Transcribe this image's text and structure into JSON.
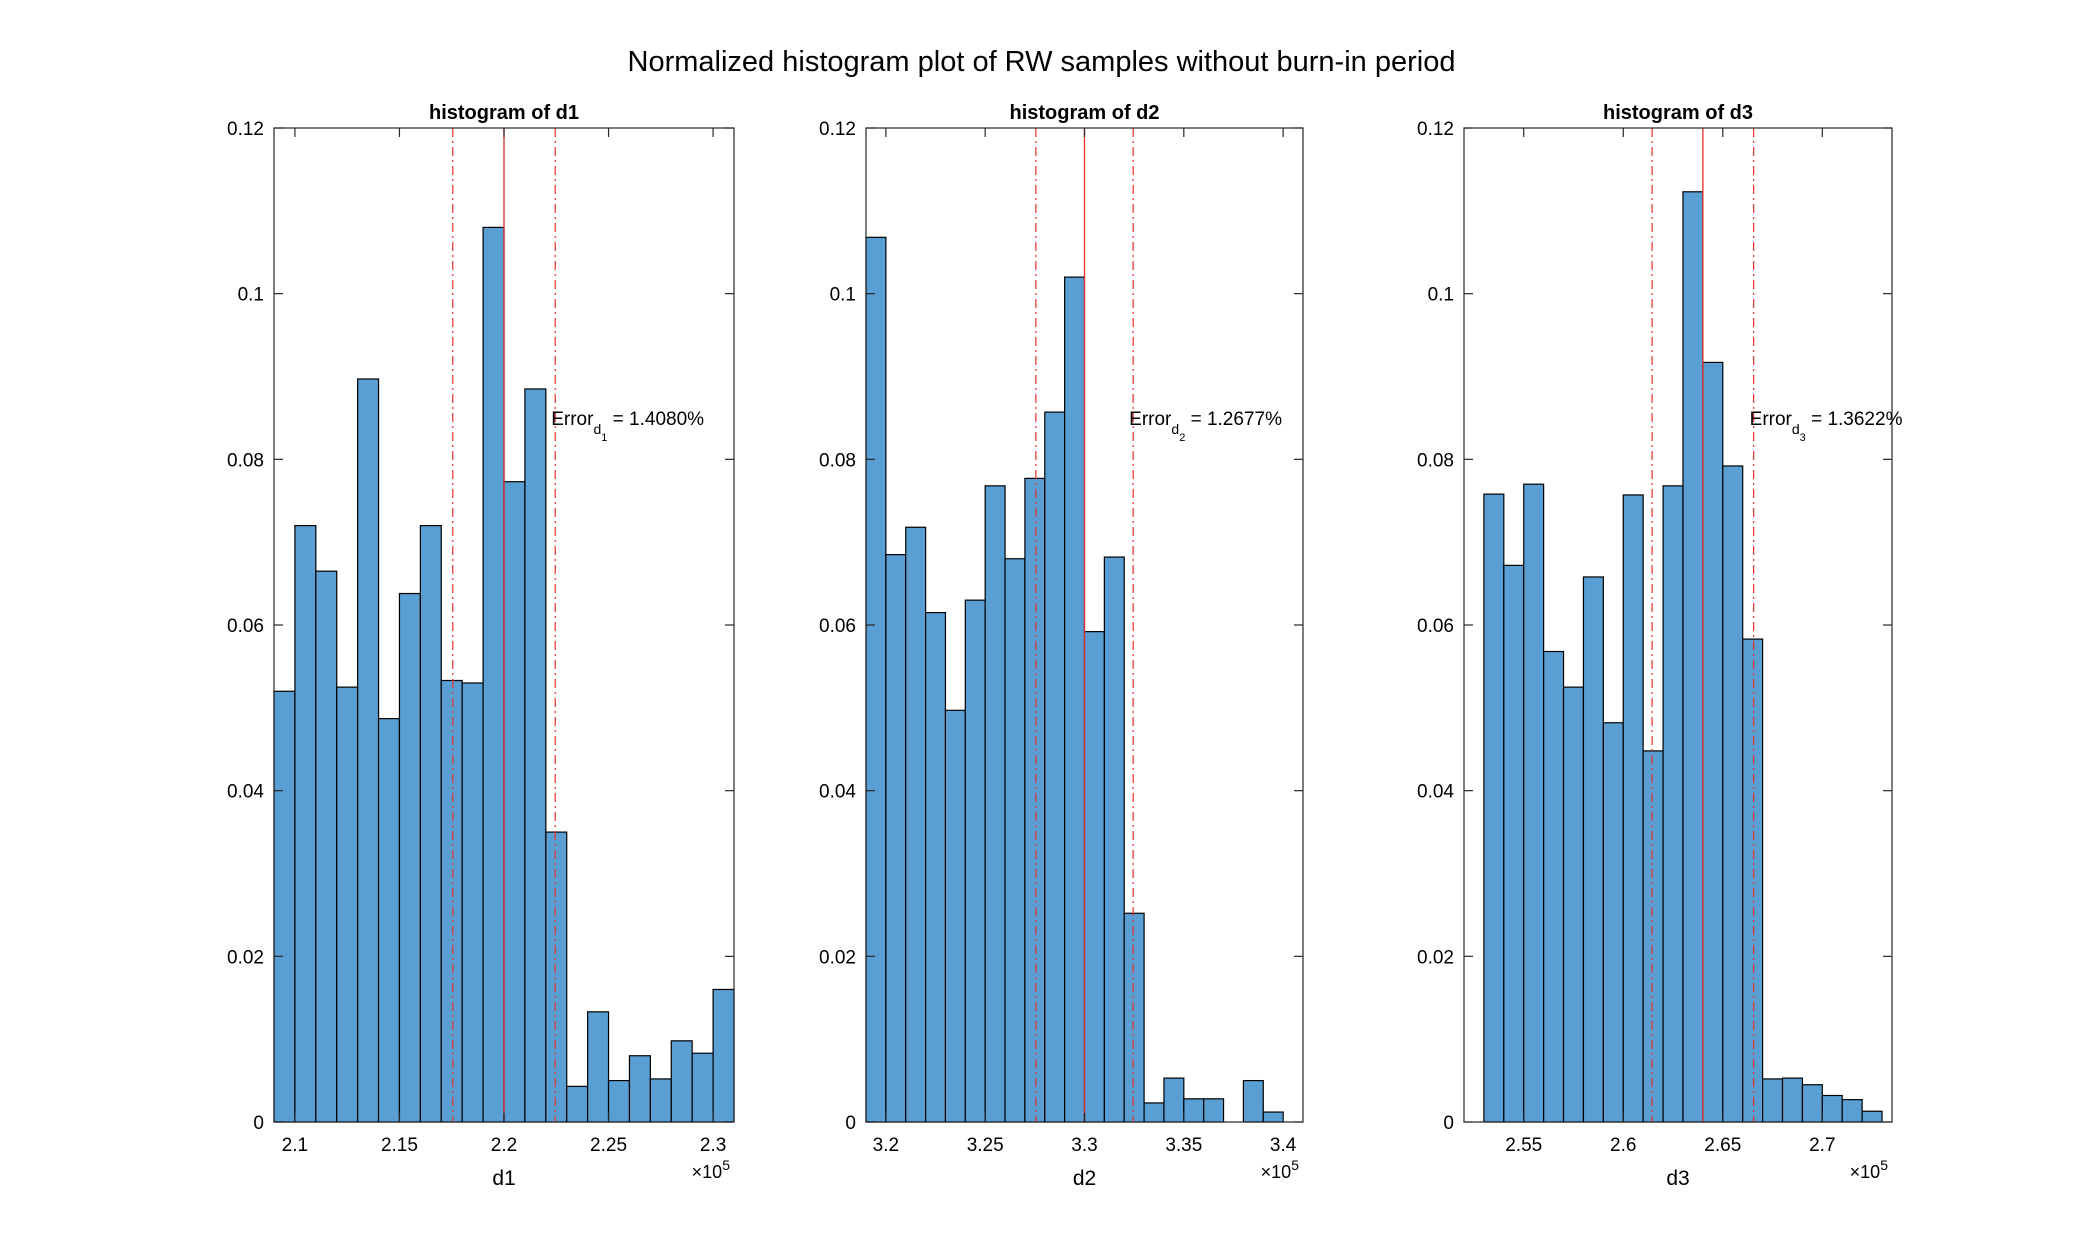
{
  "figure": {
    "title": "Normalized histogram plot of RW samples without burn-in period"
  },
  "chart_data": [
    {
      "type": "histogram",
      "title": "histogram of d1",
      "xlabel": "d1",
      "ylabel": "",
      "exponent_label": "×10",
      "exponent_sup": "5",
      "xlim": [
        2.09,
        2.31
      ],
      "ylim": [
        0,
        0.12
      ],
      "xticks": [
        2.1,
        2.15,
        2.2,
        2.25,
        2.3
      ],
      "xtick_labels": [
        "2.1",
        "2.15",
        "2.2",
        "2.25",
        "2.3"
      ],
      "yticks": [
        0,
        0.02,
        0.04,
        0.06,
        0.08,
        0.1,
        0.12
      ],
      "ytick_labels": [
        "0",
        "0.02",
        "0.04",
        "0.06",
        "0.08",
        "0.1",
        "0.12"
      ],
      "bin_edges": [
        2.09,
        2.1,
        2.11,
        2.12,
        2.13,
        2.14,
        2.15,
        2.16,
        2.17,
        2.18,
        2.19,
        2.2,
        2.21,
        2.22,
        2.23,
        2.24,
        2.25,
        2.26,
        2.27,
        2.28,
        2.29,
        2.3,
        2.31
      ],
      "values": [
        0.052,
        0.072,
        0.0665,
        0.0525,
        0.0897,
        0.0487,
        0.0638,
        0.072,
        0.0533,
        0.053,
        0.108,
        0.0773,
        0.0885,
        0.035,
        0.0043,
        0.0133,
        0.005,
        0.008,
        0.0052,
        0.0098,
        0.0083,
        0.016
      ],
      "reference_line": 2.2,
      "bound_lines": [
        2.1755,
        2.2245
      ],
      "annotation": {
        "prefix": "Error",
        "sub1": "d",
        "sub2": "1",
        "value": " = 1.4080%"
      },
      "grid": false
    },
    {
      "type": "histogram",
      "title": "histogram of d2",
      "xlabel": "d2",
      "ylabel": "",
      "exponent_label": "×10",
      "exponent_sup": "5",
      "xlim": [
        3.19,
        3.41
      ],
      "ylim": [
        0,
        0.12
      ],
      "xticks": [
        3.2,
        3.25,
        3.3,
        3.35,
        3.4
      ],
      "xtick_labels": [
        "3.2",
        "3.25",
        "3.3",
        "3.35",
        "3.4"
      ],
      "yticks": [
        0,
        0.02,
        0.04,
        0.06,
        0.08,
        0.1,
        0.12
      ],
      "ytick_labels": [
        "0",
        "0.02",
        "0.04",
        "0.06",
        "0.08",
        "0.1",
        "0.12"
      ],
      "bin_edges": [
        3.19,
        3.2,
        3.21,
        3.22,
        3.23,
        3.24,
        3.25,
        3.26,
        3.27,
        3.28,
        3.29,
        3.3,
        3.31,
        3.32,
        3.33,
        3.34,
        3.35,
        3.36,
        3.37,
        3.38,
        3.39,
        3.4
      ],
      "values": [
        0.1068,
        0.0685,
        0.0718,
        0.0615,
        0.0497,
        0.063,
        0.0768,
        0.068,
        0.0777,
        0.0857,
        0.102,
        0.0592,
        0.0682,
        0.0252,
        0.0023,
        0.0053,
        0.0028,
        0.0028,
        0.0,
        0.005,
        0.0012
      ],
      "reference_line": 3.3,
      "bound_lines": [
        3.2755,
        3.3245
      ],
      "annotation": {
        "prefix": "Error",
        "sub1": "d",
        "sub2": "2",
        "value": " = 1.2677%"
      },
      "grid": false
    },
    {
      "type": "histogram",
      "title": "histogram of d3",
      "xlabel": "d3",
      "ylabel": "",
      "exponent_label": "×10",
      "exponent_sup": "5",
      "xlim": [
        2.52,
        2.735
      ],
      "ylim": [
        0,
        0.12
      ],
      "xticks": [
        2.55,
        2.6,
        2.65,
        2.7
      ],
      "xtick_labels": [
        "2.55",
        "2.6",
        "2.65",
        "2.7"
      ],
      "yticks": [
        0,
        0.02,
        0.04,
        0.06,
        0.08,
        0.1,
        0.12
      ],
      "ytick_labels": [
        "0",
        "0.02",
        "0.04",
        "0.06",
        "0.08",
        "0.1",
        "0.12"
      ],
      "bin_edges": [
        2.53,
        2.54,
        2.55,
        2.56,
        2.57,
        2.58,
        2.59,
        2.6,
        2.61,
        2.62,
        2.63,
        2.64,
        2.65,
        2.66,
        2.67,
        2.68,
        2.69,
        2.7,
        2.71,
        2.72,
        2.73
      ],
      "values": [
        0.0758,
        0.0672,
        0.077,
        0.0568,
        0.0525,
        0.0658,
        0.0482,
        0.0757,
        0.0448,
        0.0768,
        0.1123,
        0.0917,
        0.0792,
        0.0583,
        0.0052,
        0.0053,
        0.0045,
        0.0032,
        0.0027,
        0.0013
      ],
      "reference_line": 2.64,
      "bound_lines": [
        2.6145,
        2.6655
      ],
      "annotation": {
        "prefix": "Error",
        "sub1": "d",
        "sub2": "3",
        "value": " = 1.3622%"
      },
      "grid": false
    }
  ],
  "colors": {
    "bar_fill": "#5a9fd4",
    "bar_edge": "#000000",
    "reference_line": "#e8302a",
    "axis": "#262626"
  }
}
